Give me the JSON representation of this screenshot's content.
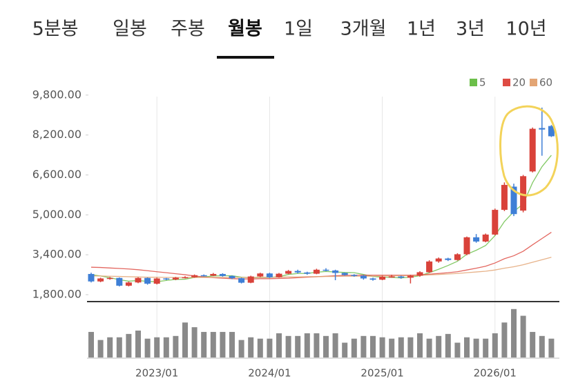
{
  "tabs": [
    "5분봉",
    "일봉",
    "주봉",
    "월봉",
    "1일",
    "3개월",
    "1년",
    "3년",
    "10년"
  ],
  "selected_tab": 3,
  "chart_data": {
    "type": "candlestick",
    "categories": [
      null,
      null,
      null,
      null,
      null,
      null,
      null,
      "2023/01",
      null,
      null,
      null,
      null,
      null,
      null,
      null,
      null,
      null,
      null,
      null,
      "2024/01",
      null,
      null,
      null,
      null,
      null,
      null,
      null,
      null,
      null,
      null,
      null,
      "2025/01",
      null,
      null,
      null,
      null,
      null,
      null,
      null,
      null,
      null,
      null,
      null,
      "2026/01",
      null,
      null,
      null,
      null,
      null,
      null
    ],
    "ylim": [
      1550,
      9850
    ],
    "yticks": [
      {
        "value": 1800,
        "label": "1,800.00"
      },
      {
        "value": 3400,
        "label": "3,400.00"
      },
      {
        "value": 5000,
        "label": "5,000.00"
      },
      {
        "value": 6600,
        "label": "6,600.00"
      },
      {
        "value": 8200,
        "label": "8,200.00"
      },
      {
        "value": 9800,
        "label": "9,800.00"
      }
    ],
    "up_color": "#d9423a",
    "down_color": "#3f7fd6",
    "candles": {
      "open": [
        2630,
        2330,
        2450,
        2470,
        2160,
        2290,
        2470,
        2240,
        2450,
        2410,
        2480,
        2500,
        2580,
        2560,
        2630,
        2550,
        2460,
        2280,
        2530,
        2650,
        2500,
        2640,
        2750,
        2690,
        2640,
        2800,
        2770,
        2670,
        2590,
        2560,
        2450,
        2400,
        2520,
        2530,
        2480,
        2560,
        2700,
        3130,
        3250,
        3190,
        3420,
        4100,
        3930,
        4210,
        5200,
        6130,
        5170,
        6740,
        8480,
        8560
      ],
      "high": [
        2680,
        2480,
        2510,
        2490,
        2320,
        2500,
        2490,
        2480,
        2470,
        2510,
        2540,
        2610,
        2610,
        2670,
        2660,
        2570,
        2480,
        2560,
        2680,
        2680,
        2670,
        2790,
        2800,
        2720,
        2840,
        2860,
        2800,
        2690,
        2620,
        2590,
        2480,
        2560,
        2600,
        2560,
        2600,
        2740,
        3180,
        3290,
        3280,
        3460,
        4130,
        4230,
        4250,
        5250,
        6300,
        6250,
        6600,
        8500,
        9300,
        8600
      ],
      "low": [
        2290,
        2300,
        2400,
        2130,
        2130,
        2260,
        2200,
        2210,
        2380,
        2380,
        2450,
        2480,
        2530,
        2540,
        2520,
        2420,
        2250,
        2260,
        2500,
        2470,
        2480,
        2620,
        2650,
        2600,
        2620,
        2740,
        2380,
        2560,
        2520,
        2400,
        2360,
        2380,
        2480,
        2440,
        2250,
        2520,
        2680,
        3080,
        3150,
        3170,
        3380,
        3880,
        3900,
        4180,
        5150,
        4950,
        5100,
        6700,
        7370,
        8120
      ],
      "close": [
        2330,
        2450,
        2470,
        2160,
        2290,
        2470,
        2240,
        2450,
        2410,
        2480,
        2500,
        2580,
        2560,
        2630,
        2550,
        2460,
        2280,
        2530,
        2650,
        2500,
        2640,
        2750,
        2690,
        2640,
        2800,
        2770,
        2670,
        2590,
        2560,
        2450,
        2400,
        2520,
        2530,
        2480,
        2560,
        2700,
        3130,
        3250,
        3190,
        3420,
        4100,
        3930,
        4210,
        5200,
        6200,
        5030,
        6550,
        8450,
        8420,
        8150
      ]
    },
    "series": [
      {
        "name": "5",
        "color": "#6cbf4a",
        "values": [
          2600,
          2550,
          2480,
          2400,
          2340,
          2370,
          2330,
          2320,
          2370,
          2410,
          2420,
          2490,
          2510,
          2550,
          2560,
          2560,
          2500,
          2480,
          2490,
          2490,
          2520,
          2610,
          2650,
          2650,
          2700,
          2730,
          2710,
          2690,
          2680,
          2610,
          2530,
          2500,
          2490,
          2470,
          2500,
          2560,
          2680,
          2820,
          2970,
          3140,
          3420,
          3580,
          3770,
          4170,
          4730,
          5130,
          5440,
          6290,
          6930,
          7390
        ]
      },
      {
        "name": "20",
        "color": "#de4b43",
        "values": [
          2900,
          2890,
          2870,
          2850,
          2830,
          2800,
          2760,
          2720,
          2680,
          2640,
          2600,
          2550,
          2510,
          2480,
          2460,
          2440,
          2430,
          2430,
          2440,
          2440,
          2450,
          2460,
          2480,
          2500,
          2520,
          2540,
          2560,
          2570,
          2580,
          2580,
          2580,
          2580,
          2580,
          2580,
          2580,
          2590,
          2620,
          2650,
          2680,
          2720,
          2790,
          2860,
          2940,
          3070,
          3240,
          3360,
          3540,
          3800,
          4050,
          4300
        ]
      },
      {
        "name": "60",
        "color": "#e3a574",
        "values": [
          2550,
          2550,
          2540,
          2530,
          2520,
          2510,
          2500,
          2500,
          2490,
          2490,
          2490,
          2490,
          2490,
          2490,
          2490,
          2490,
          2490,
          2490,
          2500,
          2500,
          2500,
          2510,
          2510,
          2520,
          2520,
          2530,
          2530,
          2540,
          2540,
          2540,
          2540,
          2550,
          2550,
          2560,
          2560,
          2570,
          2590,
          2610,
          2630,
          2650,
          2680,
          2710,
          2740,
          2790,
          2860,
          2920,
          3000,
          3100,
          3200,
          3300
        ]
      }
    ],
    "volume": {
      "color": "#8a8a8a",
      "ylim": [
        0,
        80
      ],
      "values": [
        38,
        26,
        30,
        30,
        35,
        40,
        28,
        30,
        30,
        32,
        52,
        45,
        38,
        38,
        38,
        38,
        26,
        30,
        28,
        28,
        36,
        32,
        32,
        36,
        36,
        32,
        36,
        22,
        28,
        32,
        32,
        30,
        28,
        30,
        30,
        36,
        28,
        32,
        35,
        22,
        30,
        28,
        28,
        36,
        52,
        72,
        62,
        38,
        32,
        28
      ]
    },
    "grid": true
  }
}
